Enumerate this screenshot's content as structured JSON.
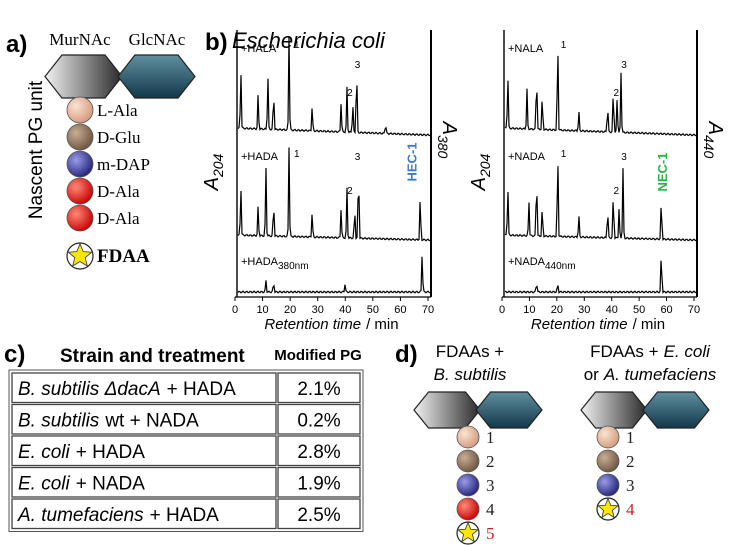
{
  "panel_a": {
    "label": "a)",
    "sugars": [
      "MurNAc",
      "GlcNAc"
    ],
    "axis_label": "Nascent PG unit",
    "residues": [
      "L-Ala",
      "D-Glu",
      "m-DAP",
      "D-Ala",
      "D-Ala"
    ],
    "probe": "FDAA"
  },
  "panel_b": {
    "label": "b)",
    "title": "Escherichia coli",
    "x_label": "Retention time",
    "x_unit": "/ min",
    "xticks": [
      0,
      10,
      20,
      30,
      40,
      50,
      60,
      70
    ],
    "plots": [
      {
        "left_axis": {
          "base": "A",
          "sub": "204"
        },
        "right_axis": {
          "base": "A",
          "sub": "380"
        },
        "traces": [
          {
            "label": "+HALA"
          },
          {
            "label": "+HADA"
          },
          {
            "label": "+HADA",
            "sub": "380nm"
          }
        ],
        "peak_labels": [
          "1",
          "3",
          "2",
          "1",
          "3",
          "2"
        ],
        "product": "HEC-1"
      },
      {
        "left_axis": {
          "base": "A",
          "sub": "204"
        },
        "right_axis": {
          "base": "A",
          "sub": "440"
        },
        "traces": [
          {
            "label": "+NALA"
          },
          {
            "label": "+NADA"
          },
          {
            "label": "+NADA",
            "sub": "440nm"
          }
        ],
        "peak_labels": [
          "1",
          "3",
          "2",
          "1",
          "3",
          "2"
        ],
        "product": "NEC-1"
      }
    ]
  },
  "panel_c": {
    "label": "c)",
    "headers": [
      "Strain and treatment",
      "Modified PG"
    ],
    "rows": [
      {
        "organism": "B. subtilis ΔdacA",
        "treatment": "+ HADA",
        "value": "2.1%"
      },
      {
        "organism": "B. subtilis",
        "treatment": "wt + NADA",
        "value": "0.2%"
      },
      {
        "organism": "E. coli",
        "treatment": "+ HADA",
        "value": "2.8%"
      },
      {
        "organism": "E. coli",
        "treatment": "+ NADA",
        "value": "1.9%"
      },
      {
        "organism": "A. tumefaciens",
        "treatment": "+ HADA",
        "value": "2.5%"
      }
    ]
  },
  "panel_d": {
    "label": "d)",
    "columns": [
      {
        "line1": "FDAAs +",
        "line2_italic": "B. subtilis",
        "residues": [
          "1",
          "2",
          "3",
          "4",
          "5"
        ]
      },
      {
        "line1": "FDAAs +",
        "line1_italic": "E. coli",
        "line2": "or",
        "line2_italic": "A. tumefaciens",
        "residues": [
          "1",
          "2",
          "3",
          "4"
        ]
      }
    ]
  }
}
